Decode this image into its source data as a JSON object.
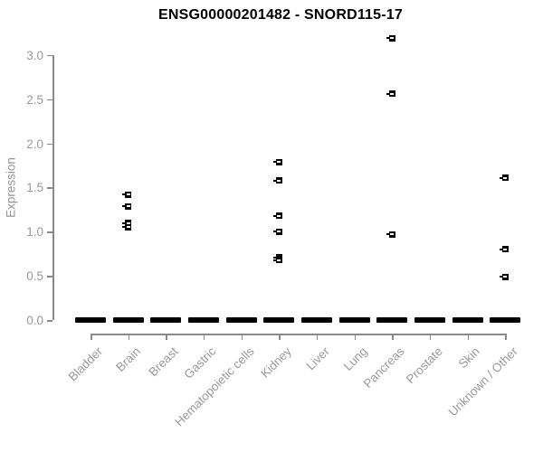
{
  "chart_data": {
    "type": "scatter",
    "title": "ENSG00000201482 - SNORD115-17",
    "xlabel": "",
    "ylabel": "Expression",
    "ylim": [
      0.0,
      3.25
    ],
    "yticks": [
      0.0,
      0.5,
      1.0,
      1.5,
      2.0,
      2.5,
      3.0
    ],
    "grid": false,
    "legend": false,
    "marker": "open-square-with-center-dash",
    "categories": [
      "Bladder",
      "Brain",
      "Breast",
      "Gastric",
      "Hematopoietic cells",
      "Kidney",
      "Liver",
      "Lung",
      "Pancreas",
      "Prostate",
      "Skin",
      "Unknown / Other"
    ],
    "zero_cluster": {
      "description": "dense overlapping cluster of points at expression 0 rendered as a thick black dash under every category",
      "value": 0.0,
      "applies_to_all_categories": true
    },
    "series": [
      {
        "name": "nonzero-expression-points",
        "points": [
          {
            "category": "Brain",
            "values": [
              1.42,
              1.29,
              1.1,
              1.05
            ]
          },
          {
            "category": "Kidney",
            "values": [
              1.79,
              1.58,
              1.18,
              1.0,
              0.71,
              0.68
            ]
          },
          {
            "category": "Pancreas",
            "values": [
              3.19,
              2.56,
              0.97
            ]
          },
          {
            "category": "Unknown / Other",
            "values": [
              1.61,
              0.8,
              0.49
            ]
          }
        ]
      }
    ],
    "colors": {
      "points": "#000000",
      "axis": "#8a8a8a",
      "tick_labels": "#9a9a9a",
      "title": "#000000",
      "background": "#ffffff"
    }
  }
}
